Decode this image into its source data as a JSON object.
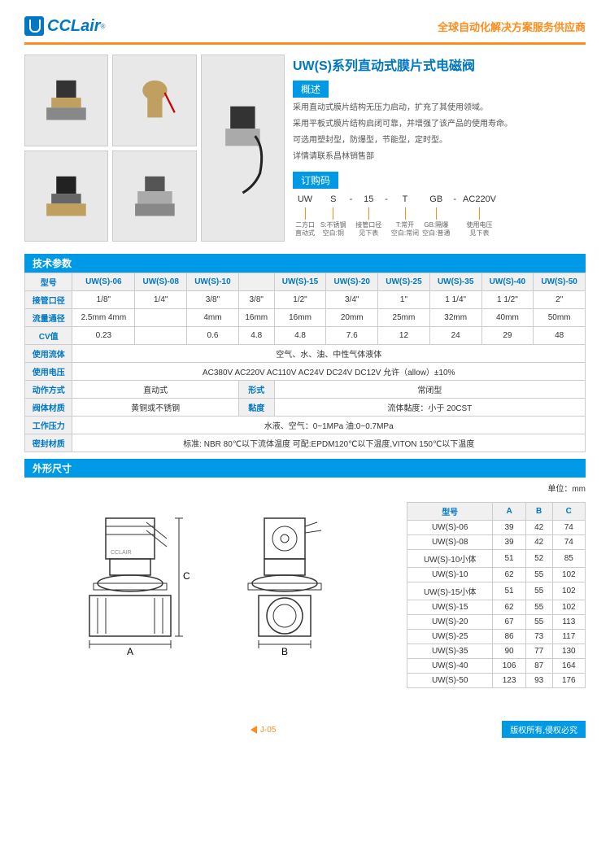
{
  "logo_text": "CCLair",
  "tagline": "全球自动化解决方案服务供应商",
  "main_title": "UW(S)系列直动式膜片式电磁阀",
  "section_labels": {
    "overview": "概述",
    "order": "订购码",
    "specs": "技术参数",
    "dims": "外形尺寸"
  },
  "desc_lines": [
    "采用直动式膜片结构无压力启动，扩充了其使用领域。",
    "采用平板式膜片结构启闭可靠，并增强了该产品的使用寿命。",
    "可选用塑封型，防爆型，节能型，定时型。",
    "详情请联系昌林销售部"
  ],
  "order_segments": [
    {
      "val": "UW",
      "desc": "二方口\n直动式"
    },
    {
      "val": "S",
      "desc": "S:不锈钢\n空白:铜"
    },
    {
      "val": "-",
      "desc": ""
    },
    {
      "val": "15",
      "desc": "接管口径\n见下表"
    },
    {
      "val": "-",
      "desc": ""
    },
    {
      "val": "T",
      "desc": "T:常开\n空白:常闭"
    },
    {
      "val": "GB",
      "desc": "GB:隔爆\n空白:普通"
    },
    {
      "val": "-",
      "desc": ""
    },
    {
      "val": "AC220V",
      "desc": "使用电压\n见下表"
    }
  ],
  "spec_table": {
    "headers": [
      "型号",
      "UW(S)-06",
      "UW(S)-08",
      "UW(S)-10",
      "",
      "UW(S)-15",
      "UW(S)-20",
      "UW(S)-25",
      "UW(S)-35",
      "UW(S)-40",
      "UW(S)-50"
    ],
    "rows": [
      [
        "接管口径",
        "1/8\"",
        "1/4\"",
        "3/8\"",
        "3/8\"",
        "1/2\"",
        "3/4\"",
        "1\"",
        "1 1/4\"",
        "1 1/2\"",
        "2\""
      ],
      [
        "流量通径",
        "2.5mm 4mm",
        "",
        "4mm",
        "16mm",
        "16mm",
        "20mm",
        "25mm",
        "32mm",
        "40mm",
        "50mm"
      ],
      [
        "CV值",
        "0.23",
        "",
        "0.6",
        "4.8",
        "4.8",
        "7.6",
        "12",
        "24",
        "29",
        "48"
      ]
    ],
    "full_rows": [
      [
        "使用流体",
        "空气、水、油、中性气体液体"
      ],
      [
        "使用电压",
        "AC380V AC220V AC110V AC24V DC24V DC12V  允许（allow）±10%"
      ],
      [
        "动作方式",
        "直动式",
        "形式",
        "常闭型"
      ],
      [
        "阀体材质",
        "黄铜或不锈钢",
        "黏度",
        "流体黏度：小于 20CST"
      ],
      [
        "工作压力",
        "水液、空气：0~1MPa  油:0~0.7MPa"
      ],
      [
        "密封材质",
        "标准: NBR 80℃以下流体温度  可配:EPDM120℃以下温度,VITON 150℃以下温度"
      ]
    ]
  },
  "unit_label": "单位：mm",
  "dim_table": {
    "headers": [
      "型号",
      "A",
      "B",
      "C"
    ],
    "rows": [
      [
        "UW(S)-06",
        "39",
        "42",
        "74"
      ],
      [
        "UW(S)-08",
        "39",
        "42",
        "74"
      ],
      [
        "UW(S)-10小体",
        "51",
        "52",
        "85"
      ],
      [
        "UW(S)-10",
        "62",
        "55",
        "102"
      ],
      [
        "UW(S)-15小体",
        "51",
        "55",
        "102"
      ],
      [
        "UW(S)-15",
        "62",
        "55",
        "102"
      ],
      [
        "UW(S)-20",
        "67",
        "55",
        "113"
      ],
      [
        "UW(S)-25",
        "86",
        "73",
        "117"
      ],
      [
        "UW(S)-35",
        "90",
        "77",
        "130"
      ],
      [
        "UW(S)-40",
        "106",
        "87",
        "164"
      ],
      [
        "UW(S)-50",
        "123",
        "93",
        "176"
      ]
    ]
  },
  "dim_labels": {
    "a": "A",
    "b": "B",
    "c": "C",
    "brand": "CCLAIR"
  },
  "page_number": "J-05",
  "copyright": "版权所有,侵权必究",
  "colors": {
    "brand_blue": "#0077c2",
    "accent_blue": "#0099e5",
    "orange": "#ff8c1a"
  }
}
